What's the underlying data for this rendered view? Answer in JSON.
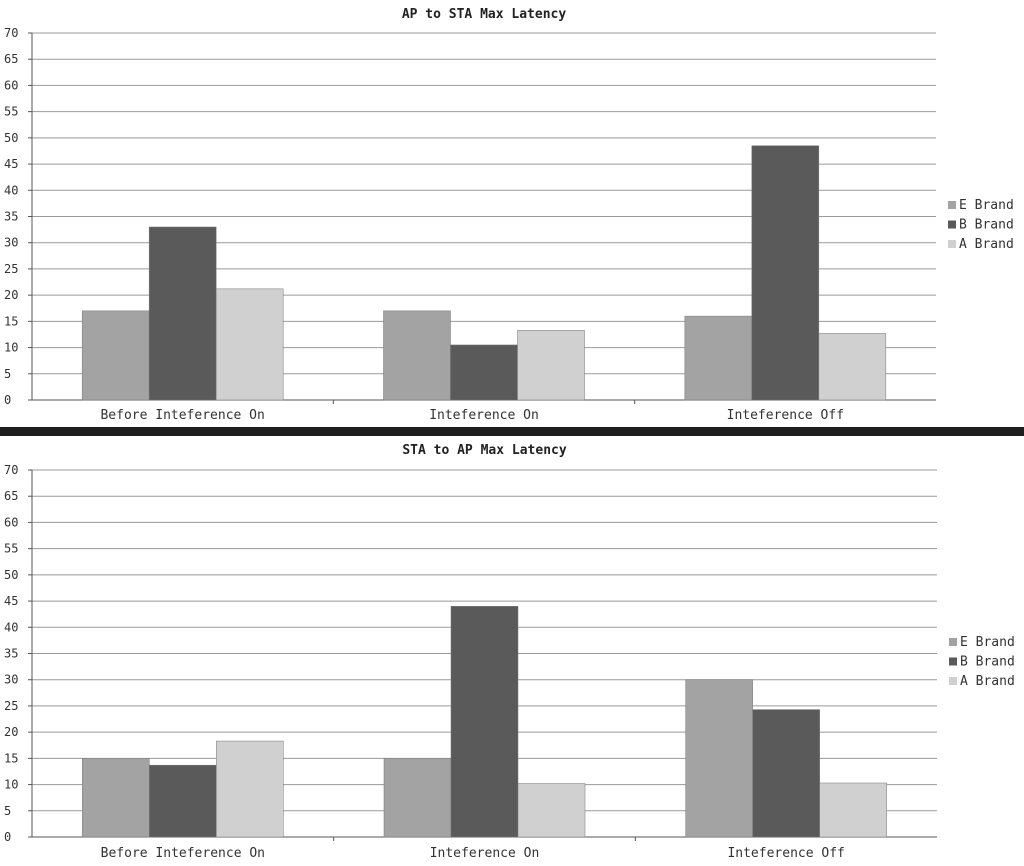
{
  "chart_data": [
    {
      "type": "bar",
      "title": "AP to STA Max Latency",
      "categories": [
        "Before Inteference On",
        "Inteference On",
        "Inteference Off"
      ],
      "series": [
        {
          "name": "E Brand",
          "values": [
            17,
            17,
            16
          ]
        },
        {
          "name": "B Brand",
          "values": [
            33,
            10.5,
            48.5
          ]
        },
        {
          "name": "A Brand",
          "values": [
            21.2,
            13.3,
            12.7
          ]
        }
      ],
      "ylim": [
        0,
        70
      ],
      "yticks": [
        0,
        5,
        10,
        15,
        20,
        25,
        30,
        35,
        40,
        45,
        50,
        55,
        60,
        65,
        70
      ],
      "grid": true,
      "legend": "right"
    },
    {
      "type": "bar",
      "title": "STA to AP Max Latency",
      "categories": [
        "Before Inteference On",
        "Inteference On",
        "Inteference Off"
      ],
      "series": [
        {
          "name": "E Brand",
          "values": [
            15,
            15,
            30
          ]
        },
        {
          "name": "B Brand",
          "values": [
            13.7,
            44,
            24.3
          ]
        },
        {
          "name": "A Brand",
          "values": [
            18.3,
            10.2,
            10.3
          ]
        }
      ],
      "ylim": [
        0,
        70
      ],
      "yticks": [
        0,
        5,
        10,
        15,
        20,
        25,
        30,
        35,
        40,
        45,
        50,
        55,
        60,
        65,
        70
      ],
      "grid": true,
      "legend": "right"
    }
  ],
  "colors": {
    "series": [
      "#a3a3a3",
      "#5a5a5a",
      "#d0d0d0"
    ],
    "grid": "#9a9a9a",
    "divider": "#1e1e1e"
  }
}
